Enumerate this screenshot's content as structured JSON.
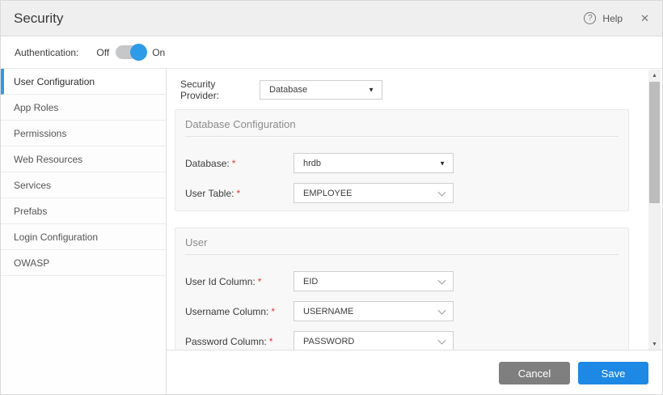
{
  "required_marker": "*",
  "header": {
    "title": "Security",
    "help_label": "Help"
  },
  "icons": {
    "help": "?",
    "close": "✕",
    "scroll_up": "▲",
    "scroll_down": "▼",
    "caret_down": "▼"
  },
  "auth": {
    "label": "Authentication:",
    "off_label": "Off",
    "on_label": "On",
    "state": "on"
  },
  "sidebar": {
    "items": [
      {
        "label": "User Configuration",
        "active": true
      },
      {
        "label": "App Roles",
        "active": false
      },
      {
        "label": "Permissions",
        "active": false
      },
      {
        "label": "Web Resources",
        "active": false
      },
      {
        "label": "Services",
        "active": false
      },
      {
        "label": "Prefabs",
        "active": false
      },
      {
        "label": "Login Configuration",
        "active": false
      },
      {
        "label": "OWASP",
        "active": false
      }
    ]
  },
  "content": {
    "provider": {
      "label": "Security Provider:",
      "value": "Database"
    },
    "sections": [
      {
        "title": "Database Configuration",
        "fields": [
          {
            "label": "Database:",
            "required": true,
            "value": "hrdb"
          },
          {
            "label": "User Table:",
            "required": true,
            "value": "EMPLOYEE"
          }
        ]
      },
      {
        "title": "User",
        "fields": [
          {
            "label": "User Id Column:",
            "required": true,
            "value": "EID"
          },
          {
            "label": "Username Column:",
            "required": true,
            "value": "USERNAME"
          },
          {
            "label": "Password Column:",
            "required": true,
            "value": "PASSWORD"
          }
        ]
      }
    ]
  },
  "footer": {
    "cancel_label": "Cancel",
    "save_label": "Save"
  },
  "colors": {
    "accent_blue": "#2e9be8",
    "save_button": "#1e88e5",
    "cancel_button": "#7f7f7f",
    "required_red": "#e53935",
    "header_bg": "#efeff0",
    "panel_bg": "#f8f8f8"
  }
}
